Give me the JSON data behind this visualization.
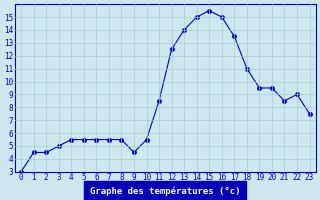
{
  "x": [
    0,
    1,
    2,
    3,
    4,
    5,
    6,
    7,
    8,
    9,
    10,
    11,
    12,
    13,
    14,
    15,
    16,
    17,
    18,
    19,
    20,
    21,
    22,
    23
  ],
  "y": [
    3,
    4.5,
    4.5,
    5,
    5.5,
    5.5,
    5.5,
    5.5,
    5.5,
    4.5,
    5.5,
    8.5,
    12.5,
    14,
    15,
    15.5,
    15,
    13.5,
    11,
    9.5,
    9.5,
    8.5,
    9,
    7.5
  ],
  "line_color": "#0000cc",
  "marker": "o",
  "marker_size": 2.5,
  "bg_color": "#cce8ee",
  "grid_color": "#aacccc",
  "xlabel": "Graphe des températures (°c)",
  "xlabel_bg": "#0000bb",
  "xlabel_color": "#ffffff",
  "ylim": [
    3,
    16
  ],
  "yticks": [
    3,
    4,
    5,
    6,
    7,
    8,
    9,
    10,
    11,
    12,
    13,
    14,
    15
  ],
  "xlim": [
    -0.5,
    23.5
  ],
  "xticks": [
    0,
    1,
    2,
    3,
    4,
    5,
    6,
    7,
    8,
    9,
    10,
    11,
    12,
    13,
    14,
    15,
    16,
    17,
    18,
    19,
    20,
    21,
    22,
    23
  ],
  "xtick_labels": [
    "0",
    "1",
    "2",
    "3",
    "4",
    "5",
    "6",
    "7",
    "8",
    "9",
    "10",
    "11",
    "12",
    "13",
    "14",
    "15",
    "16",
    "17",
    "18",
    "19",
    "20",
    "21",
    "22",
    "23"
  ],
  "tick_fontsize": 5.5,
  "label_fontsize": 6.5
}
